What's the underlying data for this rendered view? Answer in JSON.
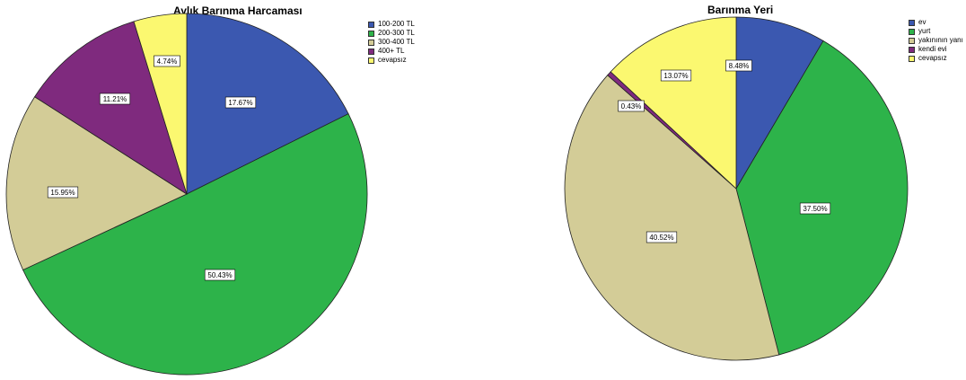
{
  "chart_data": [
    {
      "type": "pie",
      "title": "Aylık Barınma Harcaması",
      "categories": [
        "100-200 TL",
        "200-300 TL",
        "300-400 TL",
        "400+ TL",
        "cevapsız"
      ],
      "values": [
        17.67,
        50.43,
        15.95,
        11.21,
        4.74
      ],
      "labels": [
        "17.67%",
        "50.43%",
        "15.95%",
        "11.21%",
        "4.74%"
      ],
      "colors": [
        "#3b58b0",
        "#2db34a",
        "#d3cc97",
        "#7f2a7e",
        "#fbf870"
      ],
      "legend_position": "top-right"
    },
    {
      "type": "pie",
      "title": "Barınma Yeri",
      "categories": [
        "ev",
        "yurt",
        "yakınının yanı",
        "kendi evi",
        "cevapsız"
      ],
      "values": [
        8.48,
        37.5,
        40.52,
        0.43,
        13.07
      ],
      "labels": [
        "8.48%",
        "37.50%",
        "40.52%",
        "0.43%",
        "13.07%"
      ],
      "colors": [
        "#3b58b0",
        "#2db34a",
        "#d3cc97",
        "#7f2a7e",
        "#fbf870"
      ],
      "legend_position": "top-right"
    }
  ]
}
